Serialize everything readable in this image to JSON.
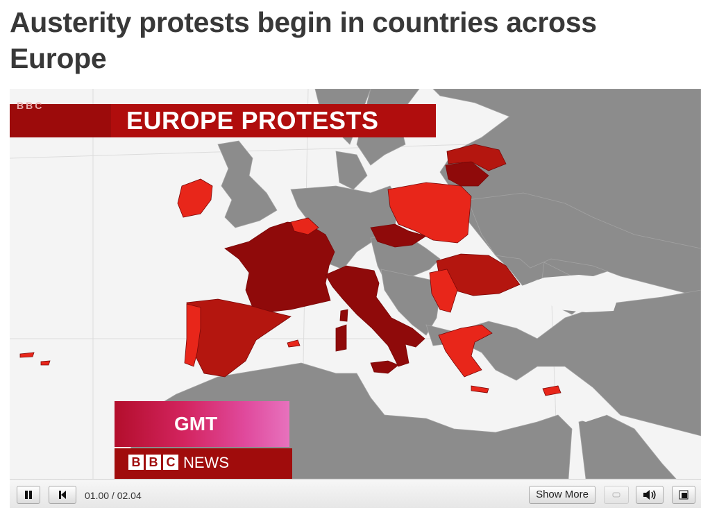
{
  "page": {
    "headline": "Austerity protests begin in countries across Europe"
  },
  "video": {
    "banner_title": "EUROPE PROTESTS",
    "banner_logo": "BBC",
    "gmt_label": "GMT",
    "bbc_letters": [
      "B",
      "B",
      "C"
    ],
    "news_label": "NEWS",
    "protest_countries": [
      "Ireland",
      "France",
      "Spain",
      "Portugal",
      "Italy",
      "Belgium",
      "Czech Republic",
      "Poland",
      "Lithuania",
      "Latvia",
      "Romania",
      "Serbia",
      "Greece",
      "Cyprus"
    ]
  },
  "player": {
    "time": "01.00 / 02.04",
    "show_more_label": "Show More",
    "icons": [
      "pause-icon",
      "previous-icon",
      "volume-icon",
      "fullscreen-icon"
    ]
  },
  "colors": {
    "protest_dark": "#8f0a0a",
    "protest_mid": "#b4160f",
    "protest_bright": "#e8261a",
    "land": "#8c8c8c",
    "sea": "#f4f4f4",
    "banner": "#b00d0d"
  }
}
